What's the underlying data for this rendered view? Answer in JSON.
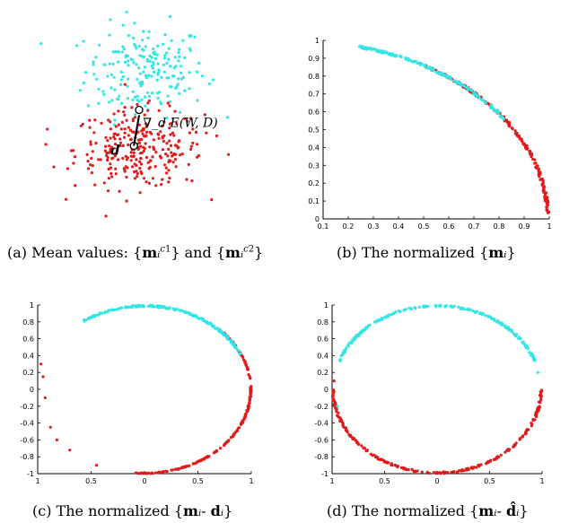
{
  "colors": {
    "class1": "#33e6e6",
    "class2": "#e21a1a",
    "axis": "#000000"
  },
  "captions": {
    "a": "(a) Mean values: {m_i^{c1}} and {m_i^{c2}}",
    "b": "(b) The normalized {m_i}",
    "c": "(c) The normalized {m_i- d_i}",
    "d": "(d) The normalized {m_i- d̂_i}"
  },
  "chart_data": [
    {
      "type": "scatter",
      "panel": "a",
      "caption": "(a) Mean values: {m_i^{c1}} and {m_i^{c2}}",
      "axes_visible": false,
      "annotations": [
        "∇_d E(W, D)",
        "d"
      ],
      "xlim": [
        -1,
        1
      ],
      "ylim": [
        -1,
        1
      ],
      "series": [
        {
          "class": "c1",
          "color": "#33e6e6",
          "distribution": "cloud",
          "center": [
            0.05,
            0.45
          ],
          "spread": [
            0.42,
            0.38
          ],
          "n": 200
        },
        {
          "class": "c2",
          "color": "#e21a1a",
          "distribution": "cloud",
          "center": [
            0.0,
            -0.25
          ],
          "spread": [
            0.45,
            0.32
          ],
          "n": 280
        }
      ],
      "markers": {
        "open_circle_points": [
          [
            0.0,
            0.1
          ],
          [
            -0.04,
            -0.22
          ]
        ],
        "arrow": [
          [
            -0.04,
            -0.22
          ],
          [
            0.0,
            0.1
          ]
        ]
      }
    },
    {
      "type": "scatter",
      "panel": "b",
      "caption": "(b) The normalized {m_i}",
      "xlim": [
        0.1,
        1
      ],
      "ylim": [
        0,
        1
      ],
      "xticks": [
        "0.1",
        "0.2",
        "0.3",
        "0.4",
        "0.5",
        "0.6",
        "0.7",
        "0.8",
        "0.9",
        "1"
      ],
      "yticks": [
        "0",
        "0.1",
        "0.2",
        "0.3",
        "0.4",
        "0.5",
        "0.6",
        "0.7",
        "0.8",
        "0.9",
        "1"
      ],
      "series": [
        {
          "class": "c1",
          "color": "#33e6e6",
          "shape": "unit-circle-arc",
          "angle_deg": [
            34,
            76
          ]
        },
        {
          "class": "c2",
          "color": "#e21a1a",
          "shape": "unit-circle-arc",
          "angle_deg": [
            2,
            60
          ]
        }
      ]
    },
    {
      "type": "scatter",
      "panel": "c",
      "caption": "(c) The normalized {m_i- d_i}",
      "xlim": [
        -1,
        1
      ],
      "ylim": [
        -1,
        1
      ],
      "xticks": [
        "1",
        "0.5",
        "0",
        "0.5",
        "1"
      ],
      "yticks": [
        "-1",
        "-0.8",
        "-0.6",
        "-0.4",
        "-0.2",
        "0",
        "0.2",
        "0.4",
        "0.6",
        "0.8",
        "1"
      ],
      "series": [
        {
          "class": "c1",
          "color": "#33e6e6",
          "shape": "unit-circle-arc",
          "angle_deg": [
            25,
            125
          ]
        },
        {
          "class": "c2",
          "color": "#e21a1a",
          "shape": "unit-circle-arc",
          "angle_deg": [
            -95,
            45
          ]
        }
      ]
    },
    {
      "type": "scatter",
      "panel": "d",
      "caption": "(d) The normalized {m_i- d̂_i}",
      "xlim": [
        -1,
        1
      ],
      "ylim": [
        -1,
        1
      ],
      "xticks": [
        "1",
        "0.5",
        "0",
        "0.5",
        "1"
      ],
      "yticks": [
        "-1",
        "-0.8",
        "-0.6",
        "-0.4",
        "-0.2",
        "0",
        "0.2",
        "0.4",
        "0.6",
        "0.8",
        "1"
      ],
      "series": [
        {
          "class": "c1",
          "color": "#33e6e6",
          "shape": "unit-circle-arc",
          "angle_deg": [
            20,
            160
          ]
        },
        {
          "class": "c2",
          "color": "#e21a1a",
          "shape": "unit-circle-arc",
          "angle_deg": [
            180,
            360
          ]
        }
      ]
    }
  ]
}
